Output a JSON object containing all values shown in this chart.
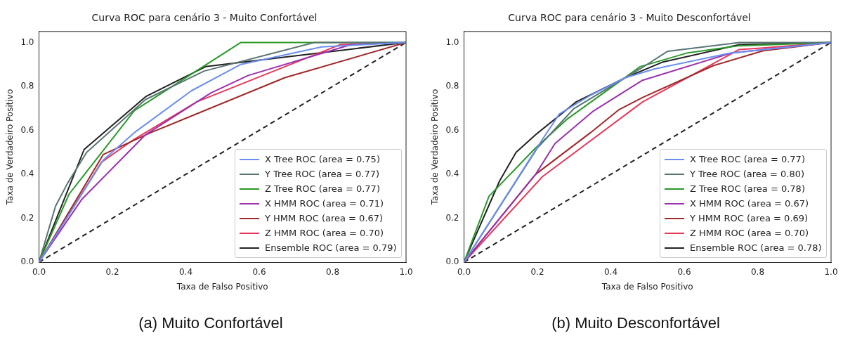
{
  "chart_data": [
    {
      "type": "line",
      "title": "Curva ROC para cenário 3 - Muito Confortável",
      "xlabel": "Taxa de Falso Positivo",
      "ylabel": "Taxa de Verdadeiro Positivo",
      "xlim": [
        0,
        1
      ],
      "ylim": [
        0,
        1.05
      ],
      "xticks": [
        {
          "value": 0,
          "label": "0.0"
        },
        {
          "value": 0.2,
          "label": "0.2"
        },
        {
          "value": 0.4,
          "label": "0.4"
        },
        {
          "value": 0.6,
          "label": "0.6"
        },
        {
          "value": 0.8,
          "label": "0.8"
        },
        {
          "value": 1,
          "label": "1.0"
        }
      ],
      "yticks": [
        {
          "value": 0,
          "label": "0.0"
        },
        {
          "value": 0.2,
          "label": "0.2"
        },
        {
          "value": 0.4,
          "label": "0.4"
        },
        {
          "value": 0.6,
          "label": "0.6"
        },
        {
          "value": 0.8,
          "label": "0.8"
        },
        {
          "value": 1,
          "label": "1.0"
        }
      ],
      "grid": false,
      "legend": "bottom right",
      "marker": "none",
      "line_style": "solid",
      "annotations": [
        "(a) Muito Confortável"
      ],
      "series": [
        {
          "name": "X Tree ROC (area = 0.75)",
          "color": "#6b8ff0",
          "x": [
            0,
            0.175,
            0.26,
            0.415,
            0.55,
            0.77,
            1
          ],
          "values": [
            0,
            0.465,
            0.59,
            0.78,
            0.9,
            0.98,
            1
          ]
        },
        {
          "name": "Y Tree ROC (area = 0.77)",
          "color": "#5a7474",
          "x": [
            0,
            0.045,
            0.078,
            0.13,
            0.29,
            0.45,
            0.75,
            1
          ],
          "values": [
            0,
            0.255,
            0.36,
            0.5,
            0.74,
            0.87,
            1,
            1
          ]
        },
        {
          "name": "Z Tree ROC (area = 0.77)",
          "color": "#2a9a2a",
          "x": [
            0,
            0.082,
            0.26,
            0.55,
            1
          ],
          "values": [
            0,
            0.31,
            0.69,
            1,
            1
          ]
        },
        {
          "name": "X HMM ROC (area = 0.71)",
          "color": "#9b30b0",
          "x": [
            0,
            0.117,
            0.29,
            0.468,
            0.57,
            0.85,
            1
          ],
          "values": [
            0,
            0.287,
            0.58,
            0.77,
            0.85,
            0.99,
            1
          ]
        },
        {
          "name": "Y HMM ROC (area = 0.67)",
          "color": "#a02828",
          "x": [
            0,
            0.175,
            0.305,
            0.67,
            1
          ],
          "values": [
            0,
            0.49,
            0.59,
            0.84,
            1
          ]
        },
        {
          "name": "Z HMM ROC (area = 0.70)",
          "color": "#e8385a",
          "x": [
            0,
            0.17,
            0.26,
            0.43,
            0.82,
            1
          ],
          "values": [
            0,
            0.455,
            0.56,
            0.73,
            0.99,
            1
          ]
        },
        {
          "name": "Ensemble ROC (area = 0.79)",
          "color": "#222222",
          "x": [
            0,
            0.123,
            0.292,
            0.454,
            1
          ],
          "values": [
            0,
            0.513,
            0.755,
            0.89,
            1
          ]
        },
        {
          "color": "#222222",
          "line_style": "dashed",
          "x": [
            0,
            1
          ],
          "values": [
            0,
            1
          ]
        }
      ]
    },
    {
      "type": "line",
      "title": "Curva ROC para cenário 3 - Muito Desconfortável",
      "xlabel": "Taxa de Falso Positivo",
      "ylabel": "Taxa de Verdadeiro Positivo",
      "xlim": [
        0,
        1
      ],
      "ylim": [
        0,
        1.05
      ],
      "xticks": [
        {
          "value": 0,
          "label": "0.0"
        },
        {
          "value": 0.2,
          "label": "0.2"
        },
        {
          "value": 0.4,
          "label": "0.4"
        },
        {
          "value": 0.6,
          "label": "0.6"
        },
        {
          "value": 0.8,
          "label": "0.8"
        },
        {
          "value": 1,
          "label": "1.0"
        }
      ],
      "yticks": [
        {
          "value": 0,
          "label": "0.0"
        },
        {
          "value": 0.2,
          "label": "0.2"
        },
        {
          "value": 0.4,
          "label": "0.4"
        },
        {
          "value": 0.6,
          "label": "0.6"
        },
        {
          "value": 0.8,
          "label": "0.8"
        },
        {
          "value": 1,
          "label": "1.0"
        }
      ],
      "grid": false,
      "legend": "bottom right",
      "marker": "none",
      "line_style": "solid",
      "annotations": [
        "(b) Muito Desconfortável"
      ],
      "series": [
        {
          "name": "X Tree ROC (area = 0.77)",
          "color": "#6b8ff0",
          "x": [
            0,
            0.21,
            0.26,
            0.345,
            0.44,
            0.52,
            0.72,
            1
          ],
          "values": [
            0,
            0.55,
            0.675,
            0.76,
            0.84,
            0.88,
            0.95,
            1
          ]
        },
        {
          "name": "Y Tree ROC (area = 0.80)",
          "color": "#5a7474",
          "x": [
            0,
            0.2,
            0.3,
            0.48,
            0.555,
            0.75,
            1
          ],
          "values": [
            0,
            0.52,
            0.7,
            0.88,
            0.96,
            1,
            1
          ]
        },
        {
          "name": "Z Tree ROC (area = 0.78)",
          "color": "#2a9a2a",
          "x": [
            0,
            0.068,
            0.195,
            0.28,
            0.48,
            0.61,
            0.75,
            1
          ],
          "values": [
            0,
            0.3,
            0.52,
            0.65,
            0.89,
            0.953,
            0.985,
            1
          ]
        },
        {
          "name": "X HMM ROC (area = 0.67)",
          "color": "#9b30b0",
          "x": [
            0,
            0.195,
            0.248,
            0.35,
            0.485,
            0.73,
            1
          ],
          "values": [
            0,
            0.4,
            0.54,
            0.685,
            0.827,
            0.953,
            1
          ]
        },
        {
          "name": "Y HMM ROC (area = 0.69)",
          "color": "#a02828",
          "x": [
            0,
            0.195,
            0.345,
            0.423,
            0.487,
            0.68,
            0.815,
            1
          ],
          "values": [
            0,
            0.4,
            0.59,
            0.695,
            0.75,
            0.895,
            0.962,
            1
          ]
        },
        {
          "name": "Z HMM ROC (area = 0.70)",
          "color": "#e8385a",
          "x": [
            0,
            0.214,
            0.487,
            0.75,
            0.815,
            1
          ],
          "values": [
            0,
            0.39,
            0.73,
            0.968,
            0.975,
            1
          ]
        },
        {
          "name": "Ensemble ROC (area = 0.78)",
          "color": "#222222",
          "x": [
            0,
            0.097,
            0.142,
            0.195,
            0.306,
            0.44,
            0.54,
            0.75,
            1
          ],
          "values": [
            0,
            0.37,
            0.5,
            0.58,
            0.73,
            0.84,
            0.91,
            0.99,
            1
          ]
        },
        {
          "color": "#222222",
          "line_style": "dashed",
          "x": [
            0,
            1
          ],
          "values": [
            0,
            1
          ]
        }
      ]
    }
  ]
}
